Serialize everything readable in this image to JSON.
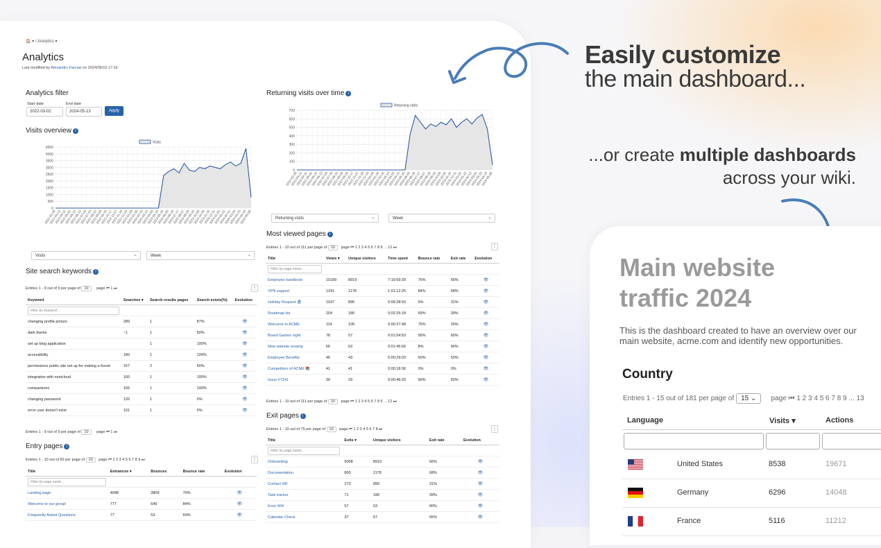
{
  "breadcrumb": "🏠 ▾ / Analytics ▾",
  "page": {
    "title": "Analytics",
    "modified_prefix": "Last modified by",
    "modified_user": "Alexandru Farcasi",
    "modified_suffix": "on 2024/05/10 17:16"
  },
  "filter": {
    "title": "Analytics filter",
    "start_label": "Start date",
    "start_value": "2022-03-02",
    "end_label": "End date",
    "end_value": "2024-05-13",
    "apply": "Apply"
  },
  "visits_overview": {
    "title": "Visits overview",
    "metric_select": "Visits",
    "period_select": "Week"
  },
  "returning_visits": {
    "title": "Returning visits over time",
    "metric_select": "Returning visits",
    "period_select": "Week"
  },
  "chart_data": [
    {
      "type": "area",
      "legend": "Visits",
      "ylim": [
        0,
        4500
      ],
      "yticks": [
        0,
        500,
        1000,
        1500,
        2000,
        2500,
        3000,
        3500,
        4000,
        4500
      ],
      "x": [
        "2022-02-28",
        "2022-03-21",
        "2022-04-11",
        "2022-05-02",
        "2022-05-23",
        "2022-06-13",
        "2022-07-04",
        "2022-07-25",
        "2022-08-15",
        "2022-09-05",
        "2022-09-26",
        "2022-10-17",
        "2022-11-07",
        "2022-11-28",
        "2022-12-19",
        "2023-01-09",
        "2023-01-30",
        "2023-02-20",
        "2023-03-13",
        "2023-04-03",
        "2023-04-24",
        "2023-05-15",
        "2023-06-05",
        "2023-06-26",
        "2023-07-17",
        "2023-08-07",
        "2023-08-28",
        "2023-09-18",
        "2023-10-09",
        "2023-10-30",
        "2023-11-20",
        "2023-12-11",
        "2024-01-01",
        "2024-01-22",
        "2024-02-12",
        "2024-03-04",
        "2024-03-25",
        "2024-04-15",
        "2024-05-06"
      ],
      "values": [
        0,
        0,
        0,
        0,
        0,
        0,
        0,
        0,
        0,
        0,
        0,
        0,
        0,
        0,
        0,
        0,
        0,
        0,
        0,
        0,
        0,
        2400,
        2700,
        2900,
        2600,
        3300,
        2800,
        2700,
        3000,
        2900,
        3100,
        3000,
        2900,
        3200,
        3400,
        3100,
        3300,
        4400,
        800
      ],
      "grid": true
    },
    {
      "type": "area",
      "legend": "Returning visits",
      "ylim": [
        0,
        700
      ],
      "yticks": [
        0,
        100,
        200,
        300,
        400,
        500,
        600,
        700
      ],
      "x": [
        "2022-02-28",
        "2022-03-21",
        "2022-04-11",
        "2022-05-02",
        "2022-05-23",
        "2022-06-13",
        "2022-07-04",
        "2022-07-25",
        "2022-08-15",
        "2022-09-05",
        "2022-09-26",
        "2022-10-17",
        "2022-11-07",
        "2022-11-28",
        "2022-12-19",
        "2023-01-09",
        "2023-01-30",
        "2023-02-20",
        "2023-03-13",
        "2023-04-03",
        "2023-04-24",
        "2023-05-15",
        "2023-06-05",
        "2023-06-26",
        "2023-07-17",
        "2023-08-07",
        "2023-08-28",
        "2023-09-18",
        "2023-10-09",
        "2023-10-30",
        "2023-11-20",
        "2023-12-11",
        "2024-01-01",
        "2024-01-22",
        "2024-02-12",
        "2024-03-04",
        "2024-03-25",
        "2024-04-15",
        "2024-05-06"
      ],
      "values": [
        0,
        0,
        0,
        0,
        0,
        0,
        0,
        0,
        0,
        0,
        0,
        0,
        0,
        0,
        0,
        0,
        0,
        0,
        0,
        0,
        0,
        0,
        420,
        640,
        560,
        480,
        540,
        510,
        560,
        530,
        600,
        500,
        560,
        600,
        540,
        610,
        650,
        480,
        60
      ],
      "grid": true
    }
  ],
  "site_search": {
    "title": "Site search keywords",
    "pager_top": "Entries 1 - 9 out of 9 per page of",
    "per_page": "10",
    "page_nav": "page ⏮ 1 ⏭",
    "headers": [
      "Keyword",
      "Searches ▾",
      "Search results pages",
      "Search exists(%)",
      "Evolution"
    ],
    "filter_placeholder": "Filter by keyword...",
    "rows": [
      [
        "changing profile picture",
        "289",
        "1",
        "87%"
      ],
      [
        "dark theme",
        "~1",
        "1",
        "50%"
      ],
      [
        "set up blog application",
        "",
        "1",
        "100%"
      ],
      [
        "accessibility",
        "180",
        "1",
        "100%"
      ],
      [
        "permissions public site set up for making a forum",
        "167",
        "2",
        "50%"
      ],
      [
        "integration with nextcloud",
        "160",
        "1",
        "100%"
      ],
      [
        "comparisons",
        "156",
        "1",
        "100%"
      ],
      [
        "changing password",
        "120",
        "1",
        "0%"
      ],
      [
        "error user doesn't exist",
        "101",
        "1",
        "0%"
      ]
    ],
    "pager_bottom": "Entries 1 - 9 out of 9 per page of"
  },
  "entry_pages": {
    "title": "Entry pages",
    "pager_top": "Entries 1 - 10 out of 82 per page of",
    "per_page": "10",
    "page_nav": "page ⏮ 1 2 3 4 5 6 7 8 9 ⏭",
    "headers": [
      "Title",
      "Entrances ▾",
      "Bounces",
      "Bounce rate",
      "Evolution"
    ],
    "filter_placeholder": "Filter by page name...",
    "rows": [
      [
        "Landing page",
        "4998",
        "3809",
        "76%"
      ],
      [
        "Welcome to our group!",
        "777",
        "649",
        "84%"
      ],
      [
        "Frequently Asked Questions",
        "77",
        "53",
        "69%"
      ]
    ]
  },
  "most_viewed": {
    "title": "Most viewed pages",
    "pager_top": "Entries 1 - 10 out of 111 per page of",
    "per_page": "10",
    "page_nav": "page ⏮ 1 2 3 4 5 6 7 8 9 ... 12 ⏭",
    "headers": [
      "Title",
      "Views ▾",
      "Unique visitors",
      "Time spent",
      "Bounce rate",
      "Exit rate",
      "Evolution"
    ],
    "filter_placeholder": "Filter by page name...",
    "rows": [
      [
        "Employee handbook",
        "10189",
        "8919",
        "7:19:59:39",
        "76%",
        "56%"
      ],
      [
        "VPN support",
        "1331",
        "1178",
        "1:01:12:25",
        "84%",
        "68%"
      ],
      [
        "Holiday Request 🏖",
        "1037",
        "890",
        "0:09:28:03",
        "6%",
        "31%"
      ],
      [
        "Roadmap list",
        "204",
        "180",
        "0:02:25:18",
        "69%",
        "39%"
      ],
      [
        "Welcome to ACME",
        "114",
        "105",
        "0:00:27:48",
        "75%",
        "26%"
      ],
      [
        "Board Games night",
        "78",
        "57",
        "0:01:54:53",
        "56%",
        "65%"
      ],
      [
        "New website revamp",
        "65",
        "63",
        "0:01:45:56",
        "8%",
        "90%"
      ],
      [
        "Employee Benefits",
        "45",
        "43",
        "0:00:29:03",
        "50%",
        "53%"
      ],
      [
        "Competitors of ACME 📚",
        "41",
        "41",
        "0:00:18:36",
        "0%",
        "0%"
      ],
      [
        "Issue #7241",
        "39",
        "29",
        "0:00:46:20",
        "56%",
        "83%"
      ]
    ],
    "pager_bottom": "Entries 1 - 10 out of 111 per page of"
  },
  "exit_pages": {
    "title": "Exit pages",
    "pager_top": "Entries 1 - 10 out of 75 per page of",
    "per_page": "10",
    "page_nav": "page ⏮ 1 2 3 4 5 6 7 8 ⏭",
    "headers": [
      "Title",
      "Exits ▾",
      "Unique visitors",
      "Exit rate",
      "Evolution"
    ],
    "filter_placeholder": "Filter by page name...",
    "rows": [
      [
        "Onboarding",
        "5008",
        "8919",
        "56%"
      ],
      [
        "Documentation",
        "800",
        "1178",
        "68%"
      ],
      [
        "Contact HR",
        "273",
        "890",
        "31%"
      ],
      [
        "Task tracker",
        "71",
        "180",
        "39%"
      ],
      [
        "Error 404",
        "57",
        "63",
        "90%"
      ],
      [
        "Calendar Check",
        "37",
        "57",
        "65%"
      ]
    ]
  },
  "marketing": {
    "headline_bold": "Easily customize",
    "headline_rest": "the main dashboard...",
    "sub_prefix": "...or create",
    "sub_bold": "multiple dashboards",
    "sub_line2": "across your wiki."
  },
  "card": {
    "title": "Main website traffic 2024",
    "description": "This is the dashboard created to have an overview over our main website, acme.com and identify new opportunities.",
    "country_title": "Country",
    "pager_prefix": "Entries 1 - 15 out of 181 per page of",
    "per_page": "15",
    "page_nav": "page ⏮ 1 2 3 4 5 6 7 8 9 ... 13",
    "headers": [
      "Language",
      "Visits ▾",
      "Actions"
    ],
    "rows": [
      {
        "country": "United States",
        "visits": "8538",
        "actions": "19671"
      },
      {
        "country": "Germany",
        "visits": "6296",
        "actions": "14048"
      },
      {
        "country": "France",
        "visits": "5116",
        "actions": "11212"
      }
    ]
  },
  "colors": {
    "accent": "#2761a8",
    "series_line": "#2d5aa0",
    "area_fill": "#e6e6e6"
  }
}
